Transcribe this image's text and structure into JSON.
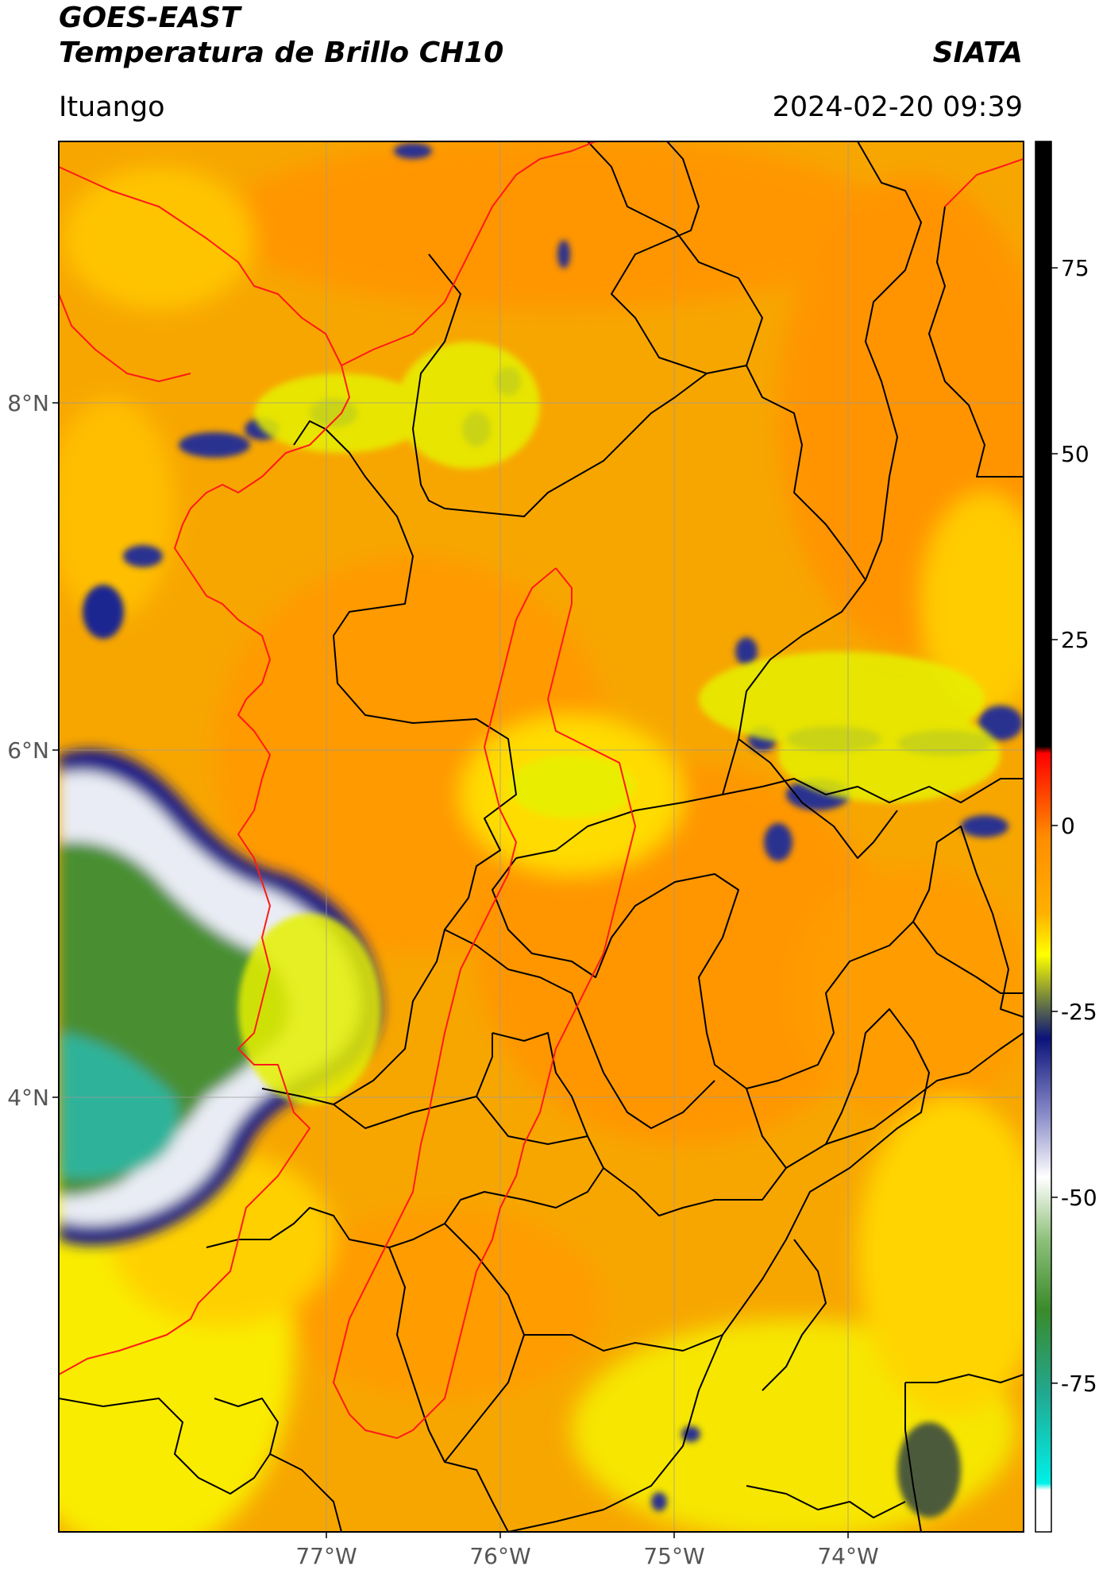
{
  "header": {
    "satellite": "GOES-EAST",
    "product": "Temperatura de Brillo CH10",
    "organization": "SIATA",
    "region": "Ituango",
    "datetime": "2024-02-20 09:39"
  },
  "map": {
    "lat_ticks": [
      {
        "label": "8°N",
        "value": 8
      },
      {
        "label": "6°N",
        "value": 6
      },
      {
        "label": "4°N",
        "value": 4
      }
    ],
    "lon_ticks": [
      {
        "label": "77°W",
        "value": -77
      },
      {
        "label": "76°W",
        "value": -76
      },
      {
        "label": "75°W",
        "value": -75
      },
      {
        "label": "74°W",
        "value": -74
      }
    ],
    "colors": {
      "background_warm": "#f5a300",
      "background_mid": "#ff9900",
      "cold_blue": "#0a1a78",
      "cold_white": "#f2f2f2",
      "cold_green": "#3f8a2a",
      "cold_teal": "#26c2a8",
      "yellow": "#f7f000",
      "political_borders": "#000000",
      "coast_and_basin": "#ff1a1a",
      "gridlines": "#9a9a9a"
    }
  },
  "colorbar": {
    "ticks": [
      {
        "label": "75",
        "value": 75
      },
      {
        "label": "50",
        "value": 50
      },
      {
        "label": "25",
        "value": 25
      },
      {
        "label": "0",
        "value": 0
      },
      {
        "label": "-25",
        "value": -25
      },
      {
        "label": "-50",
        "value": -50
      },
      {
        "label": "-75",
        "value": -75
      }
    ],
    "range": [
      -95,
      92
    ]
  }
}
